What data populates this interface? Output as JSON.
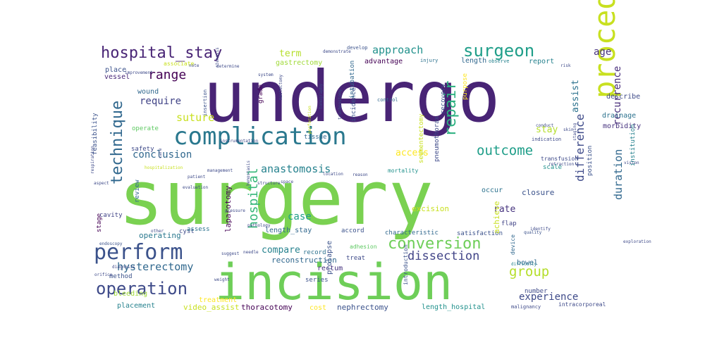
{
  "words": [
    {
      "text": "surgery",
      "color": "#7ad151",
      "vertical": false
    },
    {
      "text": "undergo",
      "color": "#482475",
      "vertical": false
    },
    {
      "text": "incision",
      "color": "#6ece58",
      "vertical": false
    },
    {
      "text": "procedure",
      "color": "#c8e020",
      "vertical": true
    },
    {
      "text": "complication",
      "color": "#2a788e",
      "vertical": false
    },
    {
      "text": "perform",
      "color": "#3b528b",
      "vertical": false
    },
    {
      "text": "hospital_stay",
      "color": "#482475",
      "vertical": false
    },
    {
      "text": "surgeon",
      "color": "#1f9e89",
      "vertical": false
    },
    {
      "text": "technique",
      "color": "#31688e",
      "vertical": true
    },
    {
      "text": "operation",
      "color": "#3e4a89",
      "vertical": false
    },
    {
      "text": "conversion",
      "color": "#6ece58",
      "vertical": false
    },
    {
      "text": "outcome",
      "color": "#1f9e89",
      "vertical": false
    },
    {
      "text": "group",
      "color": "#b5de2b",
      "vertical": false
    },
    {
      "text": "range",
      "color": "#440154",
      "vertical": false
    },
    {
      "text": "hysterectomy",
      "color": "#31688e",
      "vertical": false
    },
    {
      "text": "dissection",
      "color": "#414487",
      "vertical": false
    },
    {
      "text": "anastomosis",
      "color": "#26828e",
      "vertical": false
    },
    {
      "text": "hospital",
      "color": "#35b779",
      "vertical": true
    },
    {
      "text": "repair",
      "color": "#2ab07f",
      "vertical": true
    },
    {
      "text": "approach",
      "color": "#21918c",
      "vertical": false
    },
    {
      "text": "suture",
      "color": "#c8e020",
      "vertical": false
    },
    {
      "text": "require",
      "color": "#414487",
      "vertical": false
    },
    {
      "text": "conclusion",
      "color": "#31688e",
      "vertical": false
    },
    {
      "text": "experience",
      "color": "#3e4a89",
      "vertical": false
    },
    {
      "text": "rate",
      "color": "#46337e",
      "vertical": false
    },
    {
      "text": "stay",
      "color": "#b5de2b",
      "vertical": false
    },
    {
      "text": "access",
      "color": "#fde725",
      "vertical": false
    },
    {
      "text": "case",
      "color": "#1f9e89",
      "vertical": false
    },
    {
      "text": "compare",
      "color": "#26828e",
      "vertical": false
    },
    {
      "text": "difference",
      "color": "#3e4a89",
      "vertical": true
    },
    {
      "text": "duration",
      "color": "#31688e",
      "vertical": true
    },
    {
      "text": "recurrence",
      "color": "#472c7a",
      "vertical": true
    },
    {
      "text": "age",
      "color": "#46327e",
      "vertical": false
    },
    {
      "text": "term",
      "color": "#b5de2b",
      "vertical": false
    },
    {
      "text": "assist",
      "color": "#2c728e",
      "vertical": true
    },
    {
      "text": "reconstruction",
      "color": "#31688e",
      "vertical": false
    },
    {
      "text": "bleeding",
      "color": "#a0da39",
      "vertical": false
    },
    {
      "text": "operating",
      "color": "#2a788e",
      "vertical": false
    },
    {
      "text": "thoracotomy",
      "color": "#440154",
      "vertical": false
    },
    {
      "text": "nephrectomy",
      "color": "#3b528b",
      "vertical": false
    },
    {
      "text": "video_assist",
      "color": "#c8e020",
      "vertical": false
    },
    {
      "text": "placement",
      "color": "#26828e",
      "vertical": false
    },
    {
      "text": "treatment",
      "color": "#fde725",
      "vertical": false
    },
    {
      "text": "cost",
      "color": "#fde725",
      "vertical": false
    },
    {
      "text": "length_hospital",
      "color": "#21918c",
      "vertical": false
    },
    {
      "text": "morbidity",
      "color": "#46327e",
      "vertical": false
    },
    {
      "text": "drainage",
      "color": "#2c728e",
      "vertical": false
    },
    {
      "text": "describe",
      "color": "#3e4a89",
      "vertical": false
    },
    {
      "text": "report",
      "color": "#26828e",
      "vertical": false
    },
    {
      "text": "advantage",
      "color": "#440154",
      "vertical": false
    },
    {
      "text": "length",
      "color": "#31688e",
      "vertical": false
    },
    {
      "text": "gastrectomy",
      "color": "#a0da39",
      "vertical": false
    },
    {
      "text": "vessel",
      "color": "#482878",
      "vertical": false
    },
    {
      "text": "place",
      "color": "#3b528b",
      "vertical": false
    },
    {
      "text": "wound",
      "color": "#31688e",
      "vertical": false
    },
    {
      "text": "safety",
      "color": "#3e4a89",
      "vertical": false
    },
    {
      "text": "operate",
      "color": "#5ec962",
      "vertical": false
    },
    {
      "text": "feasibility",
      "color": "#3b528b",
      "vertical": true
    },
    {
      "text": "review",
      "color": "#31688e",
      "vertical": true
    },
    {
      "text": "stage",
      "color": "#440154",
      "vertical": true
    },
    {
      "text": "cavity",
      "color": "#414487",
      "vertical": false
    },
    {
      "text": "method",
      "color": "#3b528b",
      "vertical": false
    },
    {
      "text": "cyst",
      "color": "#3e4a89",
      "vertical": false
    },
    {
      "text": "assess",
      "color": "#2c728e",
      "vertical": false
    },
    {
      "text": "laparotomy",
      "color": "#440154",
      "vertical": true
    },
    {
      "text": "record",
      "color": "#2c728e",
      "vertical": false
    },
    {
      "text": "series",
      "color": "#3b528b",
      "vertical": false
    },
    {
      "text": "length_stay",
      "color": "#31688e",
      "vertical": false
    },
    {
      "text": "accord",
      "color": "#3b528b",
      "vertical": false
    },
    {
      "text": "characteristic",
      "color": "#31688e",
      "vertical": false
    },
    {
      "text": "satisfaction",
      "color": "#3b528b",
      "vertical": false
    },
    {
      "text": "excision",
      "color": "#c8e020",
      "vertical": false
    },
    {
      "text": "treat",
      "color": "#3e4a89",
      "vertical": false
    },
    {
      "text": "rectum",
      "color": "#46327e",
      "vertical": false
    },
    {
      "text": "prolapse",
      "color": "#3b528b",
      "vertical": true
    },
    {
      "text": "adhesion",
      "color": "#5ec962",
      "vertical": false
    },
    {
      "text": "bowel",
      "color": "#31688e",
      "vertical": false
    },
    {
      "text": "number",
      "color": "#3e4a89",
      "vertical": false
    },
    {
      "text": "device",
      "color": "#31688e",
      "vertical": true
    },
    {
      "text": "achieve",
      "color": "#c8e020",
      "vertical": true
    },
    {
      "text": "occur",
      "color": "#2c728e",
      "vertical": false
    },
    {
      "text": "closure",
      "color": "#3b528b",
      "vertical": false
    },
    {
      "text": "flap",
      "color": "#414487",
      "vertical": false
    },
    {
      "text": "position",
      "color": "#3b528b",
      "vertical": true
    },
    {
      "text": "institution",
      "color": "#26828e",
      "vertical": true
    },
    {
      "text": "scale",
      "color": "#21918c",
      "vertical": false
    },
    {
      "text": "transfusion",
      "color": "#3e4a89",
      "vertical": false
    },
    {
      "text": "indication",
      "color": "#3e4a89",
      "vertical": false
    },
    {
      "text": "recovery",
      "color": "#3b528b",
      "vertical": true
    },
    {
      "text": "purpose",
      "color": "#fde725",
      "vertical": true
    },
    {
      "text": "pneumothorax",
      "color": "#3e4a89",
      "vertical": true
    },
    {
      "text": "incidence",
      "color": "#3b528b",
      "vertical": true
    },
    {
      "text": "intubation",
      "color": "#31688e",
      "vertical": true
    },
    {
      "text": "mortality",
      "color": "#21918c",
      "vertical": false
    },
    {
      "text": "tissue",
      "color": "#31688e",
      "vertical": false
    },
    {
      "text": "grade",
      "color": "#440154",
      "vertical": true
    },
    {
      "text": "injury",
      "color": "#2c728e",
      "vertical": false
    },
    {
      "text": "observe",
      "color": "#26828e",
      "vertical": false
    },
    {
      "text": "develop",
      "color": "#3b528b",
      "vertical": false
    },
    {
      "text": "associate",
      "color": "#c8e020",
      "vertical": false
    },
    {
      "text": "intracorporeal",
      "color": "#3e4a89",
      "vertical": false
    },
    {
      "text": "malignancy",
      "color": "#3e4a89",
      "vertical": false
    },
    {
      "text": "introduction",
      "color": "#3b528b",
      "vertical": true
    },
    {
      "text": "segmentectomy",
      "color": "#c8e020",
      "vertical": true
    },
    {
      "text": "control",
      "color": "#31688e",
      "vertical": false
    },
    {
      "text": "location",
      "color": "#3e4a89",
      "vertical": false
    },
    {
      "text": "difficulty",
      "color": "#26828e",
      "vertical": false
    },
    {
      "text": "quality",
      "color": "#3b528b",
      "vertical": false
    },
    {
      "text": "identify",
      "color": "#3e4a89",
      "vertical": false
    },
    {
      "text": "insertion",
      "color": "#3b528b",
      "vertical": true
    },
    {
      "text": "staging",
      "color": "#3e4a89",
      "vertical": true
    },
    {
      "text": "tracheostomy",
      "color": "#3e4a89",
      "vertical": true
    },
    {
      "text": "tomography",
      "color": "#3e4a89",
      "vertical": true
    },
    {
      "text": "perforation",
      "color": "#c8e020",
      "vertical": true
    },
    {
      "text": "needle",
      "color": "#3e4a89",
      "vertical": false
    },
    {
      "text": "weight",
      "color": "#3e4a89",
      "vertical": false
    },
    {
      "text": "diagnosis",
      "color": "#3e4a89",
      "vertical": false
    },
    {
      "text": "endoscopy",
      "color": "#3b528b",
      "vertical": false
    },
    {
      "text": "suggest",
      "color": "#3e4a89",
      "vertical": false
    },
    {
      "text": "orifice",
      "color": "#3e4a89",
      "vertical": false
    },
    {
      "text": "skin",
      "color": "#3e4a89",
      "vertical": false
    },
    {
      "text": "conduct",
      "color": "#3e4a89",
      "vertical": false
    },
    {
      "text": "retraction",
      "color": "#3e4a89",
      "vertical": false
    },
    {
      "text": "improvement",
      "color": "#3e4a89",
      "vertical": false
    },
    {
      "text": "instrumentation",
      "color": "#3e4a89",
      "vertical": false
    },
    {
      "text": "demonstrate",
      "color": "#3e4a89",
      "vertical": false
    },
    {
      "text": "determine",
      "color": "#3e4a89",
      "vertical": false
    },
    {
      "text": "space",
      "color": "#3e4a89",
      "vertical": false
    },
    {
      "text": "structure",
      "color": "#3e4a89",
      "vertical": false
    },
    {
      "text": "management",
      "color": "#3e4a89",
      "vertical": false
    },
    {
      "text": "pathology",
      "color": "#3e4a89",
      "vertical": false
    },
    {
      "text": "other",
      "color": "#3e4a89",
      "vertical": false
    },
    {
      "text": "pressure",
      "color": "#3e4a89",
      "vertical": false
    },
    {
      "text": "risk",
      "color": "#3e4a89",
      "vertical": false
    },
    {
      "text": "respiration",
      "color": "#3e4a89",
      "vertical": true
    },
    {
      "text": "hospitalization",
      "color": "#c8e020",
      "vertical": false
    },
    {
      "text": "evaluation",
      "color": "#3e4a89",
      "vertical": false
    },
    {
      "text": "stenosis",
      "color": "#3e4a89",
      "vertical": true
    },
    {
      "text": "hemostasis",
      "color": "#3e4a89",
      "vertical": true
    },
    {
      "text": "system",
      "color": "#3e4a89",
      "vertical": false
    },
    {
      "text": "mastectomy",
      "color": "#3e4a89",
      "vertical": true
    },
    {
      "text": "exploration",
      "color": "#3e4a89",
      "vertical": false
    },
    {
      "text": "vision",
      "color": "#3e4a89",
      "vertical": false
    },
    {
      "text": "note",
      "color": "#3e4a89",
      "vertical": false
    },
    {
      "text": "aspect",
      "color": "#3e4a89",
      "vertical": false
    },
    {
      "text": "care",
      "color": "#3e4a89",
      "vertical": true
    },
    {
      "text": "patient",
      "color": "#3e4a89",
      "vertical": false
    },
    {
      "text": "reason",
      "color": "#3e4a89",
      "vertical": false
    }
  ]
}
